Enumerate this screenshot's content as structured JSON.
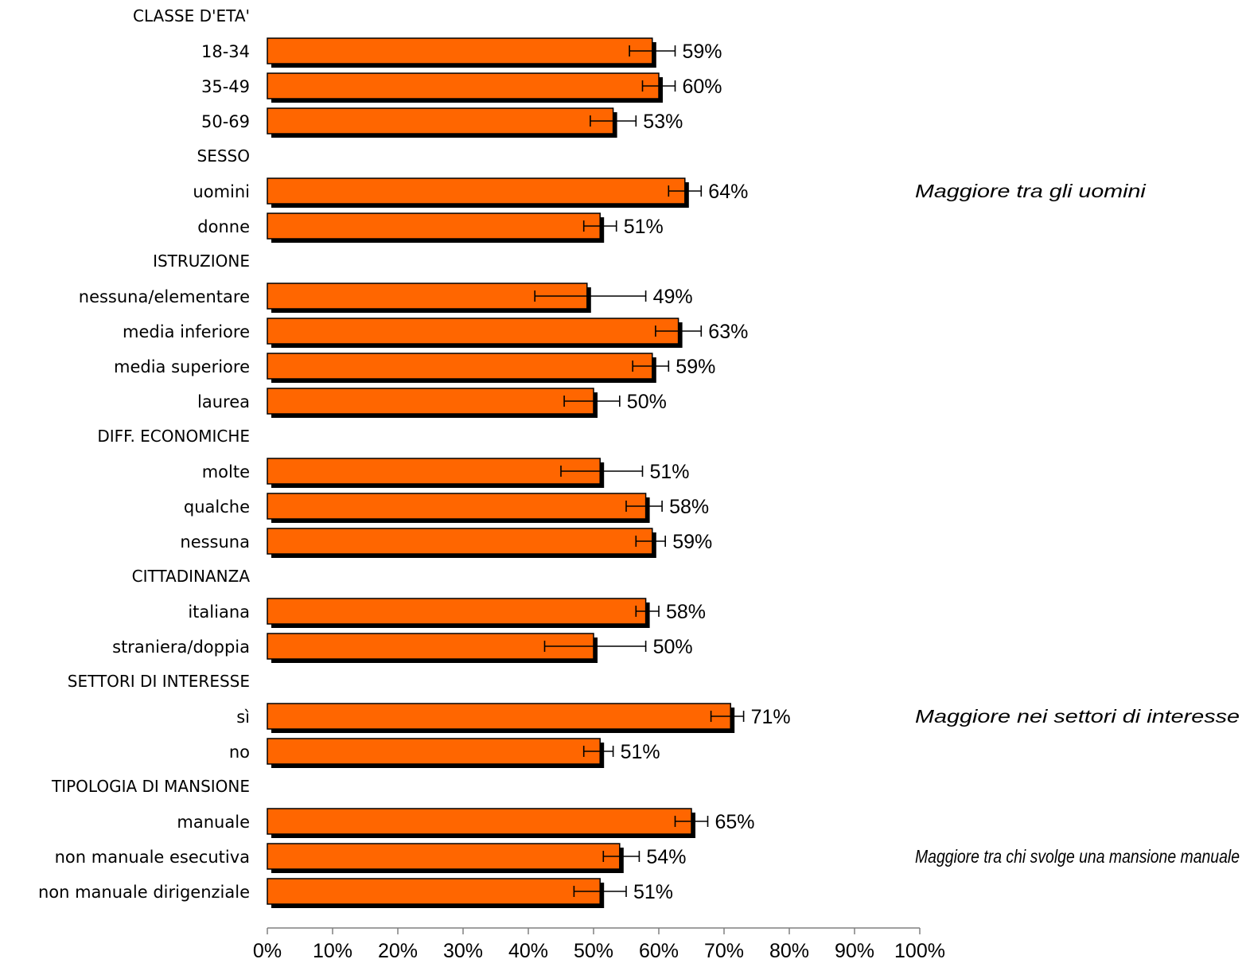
{
  "chart_data": {
    "type": "bar",
    "orientation": "horizontal",
    "colors": {
      "bar": "#FF6600",
      "shadow": "#000000",
      "outline": "#000000"
    },
    "xlim": [
      0,
      100
    ],
    "x_unit": "%",
    "x_ticks": [
      "0%",
      "10%",
      "20%",
      "30%",
      "40%",
      "50%",
      "60%",
      "70%",
      "80%",
      "90%",
      "100%"
    ],
    "error_bars": true,
    "groups": [
      {
        "label": "CLASSE D'ETA'",
        "items": [
          {
            "label": "18-34",
            "value": 59,
            "ci": [
              55.5,
              62.5
            ],
            "value_label": "59%"
          },
          {
            "label": "35-49",
            "value": 60,
            "ci": [
              57.5,
              62.5
            ],
            "value_label": "60%"
          },
          {
            "label": "50-69",
            "value": 53,
            "ci": [
              49.5,
              56.5
            ],
            "value_label": "53%"
          }
        ]
      },
      {
        "label": "SESSO",
        "items": [
          {
            "label": "uomini",
            "value": 64,
            "ci": [
              61.5,
              66.5
            ],
            "value_label": "64%"
          },
          {
            "label": "donne",
            "value": 51,
            "ci": [
              48.5,
              53.5
            ],
            "value_label": "51%"
          }
        ]
      },
      {
        "label": "ISTRUZIONE",
        "items": [
          {
            "label": "nessuna/elementare",
            "value": 49,
            "ci": [
              41,
              58
            ],
            "value_label": "49%"
          },
          {
            "label": "media inferiore",
            "value": 63,
            "ci": [
              59.5,
              66.5
            ],
            "value_label": "63%"
          },
          {
            "label": "media superiore",
            "value": 59,
            "ci": [
              56,
              61.5
            ],
            "value_label": "59%"
          },
          {
            "label": "laurea",
            "value": 50,
            "ci": [
              45.5,
              54
            ],
            "value_label": "50%"
          }
        ]
      },
      {
        "label": "DIFF. ECONOMICHE",
        "items": [
          {
            "label": "molte",
            "value": 51,
            "ci": [
              45,
              57.5
            ],
            "value_label": "51%"
          },
          {
            "label": "qualche",
            "value": 58,
            "ci": [
              55,
              60.5
            ],
            "value_label": "58%"
          },
          {
            "label": "nessuna",
            "value": 59,
            "ci": [
              56.5,
              61
            ],
            "value_label": "59%"
          }
        ]
      },
      {
        "label": "CITTADINANZA",
        "items": [
          {
            "label": "italiana",
            "value": 58,
            "ci": [
              56.5,
              60
            ],
            "value_label": "58%"
          },
          {
            "label": "straniera/doppia",
            "value": 50,
            "ci": [
              42.5,
              58
            ],
            "value_label": "50%"
          }
        ]
      },
      {
        "label": "SETTORI DI INTERESSE",
        "items": [
          {
            "label": "sì",
            "value": 71,
            "ci": [
              68,
              73
            ],
            "value_label": "71%"
          },
          {
            "label": "no",
            "value": 51,
            "ci": [
              48.5,
              53
            ],
            "value_label": "51%"
          }
        ]
      },
      {
        "label": "TIPOLOGIA DI MANSIONE",
        "items": [
          {
            "label": "manuale",
            "value": 65,
            "ci": [
              62.5,
              67.5
            ],
            "value_label": "65%"
          },
          {
            "label": "non manuale esecutiva",
            "value": 54,
            "ci": [
              51.5,
              57
            ],
            "value_label": "54%"
          },
          {
            "label": "non manuale dirigenziale",
            "value": 51,
            "ci": [
              47,
              55
            ],
            "value_label": "51%"
          }
        ]
      }
    ],
    "annotations": [
      {
        "text": "Maggiore tra gli uomini",
        "row": "uomini"
      },
      {
        "text": "Maggiore nei settori di interesse",
        "row": "sì"
      },
      {
        "text": "Maggiore tra chi svolge una mansione manuale",
        "row": "non manuale esecutiva"
      }
    ]
  }
}
